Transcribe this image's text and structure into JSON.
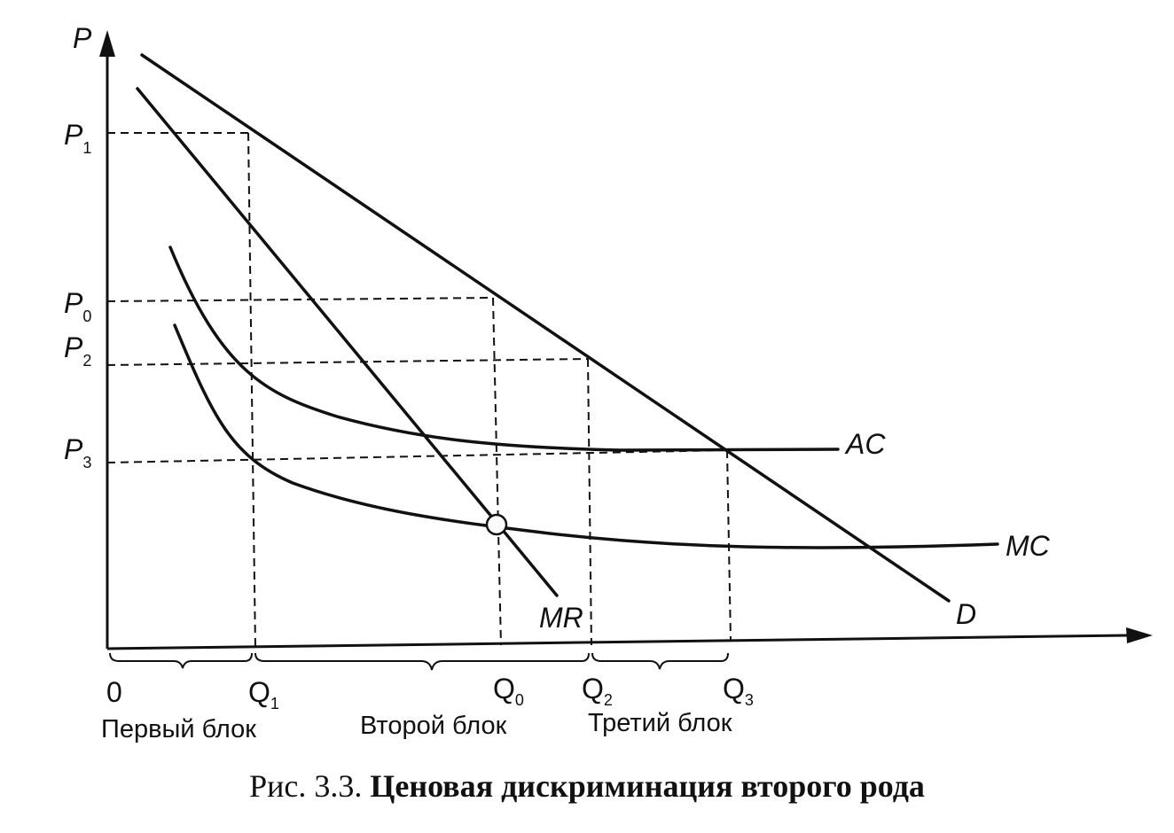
{
  "figure": {
    "axis": {
      "y_label": "P",
      "origin_label": "0"
    },
    "price_ticks": [
      {
        "id": "p1",
        "base": "P",
        "sub": "1"
      },
      {
        "id": "p0",
        "base": "P",
        "sub": "0"
      },
      {
        "id": "p2",
        "base": "P",
        "sub": "2"
      },
      {
        "id": "p3",
        "base": "P",
        "sub": "3"
      }
    ],
    "quantity_ticks": [
      {
        "id": "q1",
        "base": "Q",
        "sub": "1"
      },
      {
        "id": "q0",
        "base": "Q",
        "sub": "0"
      },
      {
        "id": "q2",
        "base": "Q",
        "sub": "2"
      },
      {
        "id": "q3",
        "base": "Q",
        "sub": "3"
      }
    ],
    "curves": {
      "demand": "D",
      "marginal_revenue": "MR",
      "average_cost": "AC",
      "marginal_cost": "MC"
    },
    "blocks": [
      "Первый блок",
      "Второй блок",
      "Третий блок"
    ]
  },
  "caption": {
    "number": "Рис. 3.3.",
    "title": "Ценовая дискриминация второго рода"
  }
}
